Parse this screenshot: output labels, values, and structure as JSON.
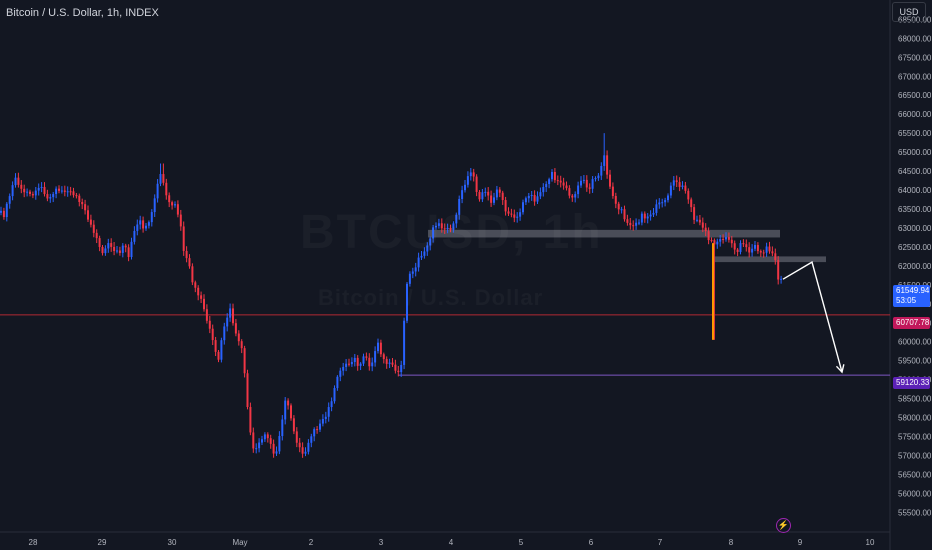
{
  "header": {
    "title": "Bitcoin / U.S. Dollar, 1h, INDEX",
    "currency": "USD"
  },
  "watermark": {
    "symbol": "BTCUSD, 1h",
    "name": "Bitcoin / U.S. Dollar"
  },
  "price_tags": {
    "current_price": "61549.94",
    "countdown": "53:05",
    "red_level": "60707.78",
    "purple_level": "59120.33"
  },
  "colors": {
    "background": "#131722",
    "up": "#2962ff",
    "down": "#f23645",
    "red_line": "#b22833",
    "purple_line": "#7e57c2",
    "zone": "#5d606b",
    "arrow": "#ffffff"
  },
  "icons": {
    "bolt": "lightning-icon"
  },
  "chart_data": {
    "type": "candlestick",
    "timeframe": "1h",
    "x_tick_labels": [
      "28",
      "29",
      "30",
      "May",
      "2",
      "3",
      "4",
      "5",
      "6",
      "7",
      "8",
      "9",
      "10"
    ],
    "y_tick_labels": [
      "68500.00",
      "68000.00",
      "67500.00",
      "67000.00",
      "66500.00",
      "66000.00",
      "65500.00",
      "65000.00",
      "64500.00",
      "64000.00",
      "63500.00",
      "63000.00",
      "62500.00",
      "62000.00",
      "61500.00",
      "61000.00",
      "60500.00",
      "60000.00",
      "59500.00",
      "59000.00",
      "58500.00",
      "58000.00",
      "57500.00",
      "57000.00",
      "56500.00",
      "56000.00",
      "55500.00"
    ],
    "ylim": [
      55300,
      68800
    ],
    "grid": false,
    "close_path": [
      [
        0,
        63400
      ],
      [
        4,
        63300
      ],
      [
        8,
        63800
      ],
      [
        12,
        64050
      ],
      [
        16,
        64300
      ],
      [
        20,
        64080
      ],
      [
        24,
        64000
      ],
      [
        28,
        63850
      ],
      [
        33,
        63900
      ],
      [
        38,
        64100
      ],
      [
        43,
        63950
      ],
      [
        48,
        63800
      ],
      [
        54,
        63900
      ],
      [
        60,
        64050
      ],
      [
        66,
        63950
      ],
      [
        70,
        63900
      ],
      [
        75,
        63950
      ],
      [
        80,
        63650
      ],
      [
        84,
        63500
      ],
      [
        88,
        63300
      ],
      [
        92,
        63000
      ],
      [
        96,
        62700
      ],
      [
        100,
        62500
      ],
      [
        104,
        62350
      ],
      [
        108,
        62600
      ],
      [
        112,
        62400
      ],
      [
        116,
        62500
      ],
      [
        120,
        62300
      ],
      [
        124,
        62600
      ],
      [
        128,
        62250
      ],
      [
        132,
        62700
      ],
      [
        136,
        63000
      ],
      [
        140,
        63200
      ],
      [
        145,
        63000
      ],
      [
        150,
        63150
      ],
      [
        154,
        63700
      ],
      [
        158,
        64300
      ],
      [
        162,
        64400
      ],
      [
        165,
        63900
      ],
      [
        170,
        63700
      ],
      [
        175,
        63550
      ],
      [
        180,
        63200
      ],
      [
        184,
        62400
      ],
      [
        188,
        62100
      ],
      [
        192,
        61600
      ],
      [
        196,
        61400
      ],
      [
        200,
        61200
      ],
      [
        204,
        60800
      ],
      [
        208,
        60500
      ],
      [
        212,
        60200
      ],
      [
        216,
        59600
      ],
      [
        218,
        59400
      ],
      [
        222,
        60200
      ],
      [
        226,
        60600
      ],
      [
        230,
        60800
      ],
      [
        234,
        60400
      ],
      [
        238,
        60100
      ],
      [
        242,
        59800
      ],
      [
        246,
        58700
      ],
      [
        250,
        57700
      ],
      [
        254,
        57100
      ],
      [
        258,
        57200
      ],
      [
        262,
        57500
      ],
      [
        266,
        57600
      ],
      [
        270,
        57300
      ],
      [
        274,
        57000
      ],
      [
        278,
        57300
      ],
      [
        282,
        57900
      ],
      [
        286,
        58500
      ],
      [
        290,
        58200
      ],
      [
        294,
        57600
      ],
      [
        298,
        57200
      ],
      [
        302,
        57100
      ],
      [
        306,
        57150
      ],
      [
        310,
        57400
      ],
      [
        314,
        57650
      ],
      [
        318,
        57800
      ],
      [
        322,
        57900
      ],
      [
        326,
        58000
      ],
      [
        330,
        58400
      ],
      [
        334,
        58700
      ],
      [
        338,
        59100
      ],
      [
        342,
        59300
      ],
      [
        346,
        59500
      ],
      [
        350,
        59300
      ],
      [
        354,
        59600
      ],
      [
        358,
        59400
      ],
      [
        362,
        59500
      ],
      [
        366,
        59600
      ],
      [
        370,
        59300
      ],
      [
        374,
        59700
      ],
      [
        378,
        59900
      ],
      [
        382,
        59600
      ],
      [
        386,
        59500
      ],
      [
        390,
        59400
      ],
      [
        394,
        59300
      ],
      [
        398,
        59200
      ],
      [
        402,
        59500
      ],
      [
        405,
        60900
      ],
      [
        408,
        61800
      ],
      [
        414,
        61900
      ],
      [
        420,
        62200
      ],
      [
        426,
        62500
      ],
      [
        430,
        62700
      ],
      [
        434,
        63000
      ],
      [
        438,
        63200
      ],
      [
        442,
        63000
      ],
      [
        446,
        62900
      ],
      [
        450,
        63000
      ],
      [
        455,
        63200
      ],
      [
        460,
        63800
      ],
      [
        466,
        64300
      ],
      [
        472,
        64500
      ],
      [
        476,
        64000
      ],
      [
        480,
        63800
      ],
      [
        484,
        64000
      ],
      [
        488,
        63800
      ],
      [
        492,
        63700
      ],
      [
        496,
        64000
      ],
      [
        500,
        63900
      ],
      [
        504,
        63600
      ],
      [
        508,
        63400
      ],
      [
        512,
        63300
      ],
      [
        516,
        63200
      ],
      [
        520,
        63500
      ],
      [
        524,
        63700
      ],
      [
        528,
        63800
      ],
      [
        532,
        63900
      ],
      [
        536,
        63700
      ],
      [
        540,
        63900
      ],
      [
        544,
        64100
      ],
      [
        548,
        64300
      ],
      [
        552,
        64400
      ],
      [
        556,
        64200
      ],
      [
        560,
        64300
      ],
      [
        564,
        64100
      ],
      [
        568,
        63900
      ],
      [
        572,
        63800
      ],
      [
        576,
        64000
      ],
      [
        580,
        64150
      ],
      [
        584,
        64300
      ],
      [
        588,
        64000
      ],
      [
        592,
        64200
      ],
      [
        596,
        64300
      ],
      [
        600,
        64500
      ],
      [
        604,
        65000
      ],
      [
        606,
        64400
      ],
      [
        610,
        64100
      ],
      [
        614,
        63800
      ],
      [
        618,
        63500
      ],
      [
        622,
        63400
      ],
      [
        626,
        63200
      ],
      [
        630,
        63100
      ],
      [
        634,
        63000
      ],
      [
        638,
        63150
      ],
      [
        642,
        63400
      ],
      [
        646,
        63200
      ],
      [
        650,
        63300
      ],
      [
        654,
        63500
      ],
      [
        658,
        63700
      ],
      [
        662,
        63600
      ],
      [
        666,
        63800
      ],
      [
        670,
        64050
      ],
      [
        674,
        64250
      ],
      [
        678,
        64100
      ],
      [
        682,
        64200
      ],
      [
        686,
        63900
      ],
      [
        690,
        63600
      ],
      [
        694,
        63300
      ],
      [
        698,
        63200
      ],
      [
        702,
        63000
      ],
      [
        706,
        62900
      ],
      [
        710,
        62700
      ],
      [
        713,
        62600
      ],
      [
        715,
        62500
      ],
      [
        718,
        62650
      ],
      [
        722,
        62800
      ],
      [
        726,
        62700
      ],
      [
        730,
        62650
      ],
      [
        734,
        62500
      ],
      [
        738,
        62400
      ],
      [
        742,
        62600
      ],
      [
        746,
        62500
      ],
      [
        750,
        62400
      ],
      [
        754,
        62500
      ],
      [
        758,
        62400
      ],
      [
        762,
        62350
      ],
      [
        766,
        62500
      ],
      [
        770,
        62300
      ],
      [
        774,
        62400
      ],
      [
        778,
        61700
      ],
      [
        782,
        61550
      ]
    ],
    "events": [
      {
        "x": 713,
        "low": 60050,
        "note": "long lower wick"
      },
      {
        "x": 604,
        "high": 65500
      },
      {
        "x": 162,
        "high": 64700
      }
    ],
    "horizontal_lines": [
      {
        "price": 60707.78,
        "color": "#b22833",
        "from": 0
      },
      {
        "price": 59120.33,
        "color": "#7e57c2",
        "from": 398
      }
    ],
    "zones": [
      {
        "from_x": 428,
        "to_x": 780,
        "top": 62950,
        "bottom": 62750
      },
      {
        "from_x": 714,
        "to_x": 826,
        "top": 62250,
        "bottom": 62100
      }
    ],
    "projection_path": [
      [
        783,
        61650
      ],
      [
        812,
        62100
      ],
      [
        842,
        59200
      ]
    ],
    "current_price": 61549.94,
    "legend": "none"
  }
}
